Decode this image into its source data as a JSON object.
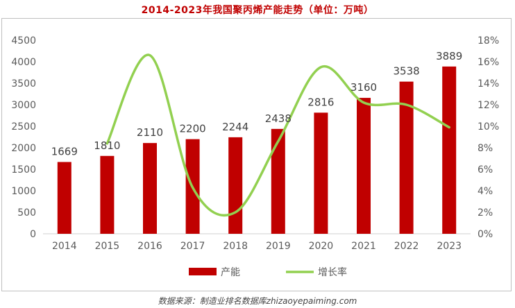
{
  "title": "2014-2023年我国聚丙烯产能走势（单位：万吨）",
  "source": "数据来源：制造业排名数据库zhizaoyepaiming.com",
  "chart_data": {
    "type": "bar",
    "categories": [
      "2014",
      "2015",
      "2016",
      "2017",
      "2018",
      "2019",
      "2020",
      "2021",
      "2022",
      "2023"
    ],
    "series": [
      {
        "name": "产能",
        "type": "bar",
        "axis": "left",
        "values": [
          1669,
          1810,
          2110,
          2200,
          2244,
          2438,
          2816,
          3160,
          3538,
          3889
        ],
        "labels": [
          "1669",
          "1810",
          "2110",
          "2200",
          "2244",
          "2438",
          "2816",
          "3160",
          "3538",
          "3889"
        ]
      },
      {
        "name": "增长率",
        "type": "line",
        "axis": "right",
        "smooth": true,
        "values": [
          null,
          8.4,
          16.6,
          4.3,
          2.0,
          8.6,
          15.5,
          12.2,
          12.0,
          9.9
        ]
      }
    ],
    "y_left": {
      "lim": [
        0,
        4500
      ],
      "ticks": [
        0,
        500,
        1000,
        1500,
        2000,
        2500,
        3000,
        3500,
        4000,
        4500
      ],
      "tick_labels": [
        "0",
        "500",
        "1000",
        "1500",
        "2000",
        "2500",
        "3000",
        "3500",
        "4000",
        "4500"
      ]
    },
    "y_right": {
      "lim": [
        0,
        18
      ],
      "ticks": [
        0,
        2,
        4,
        6,
        8,
        10,
        12,
        14,
        16,
        18
      ],
      "tick_labels": [
        "0%",
        "2%",
        "4%",
        "6%",
        "8%",
        "10%",
        "12%",
        "14%",
        "16%",
        "18%"
      ]
    },
    "grid": false,
    "legend": "bottom-center",
    "colors": {
      "bar": "#c00000",
      "line": "#92d050",
      "title": "#c00000"
    }
  }
}
